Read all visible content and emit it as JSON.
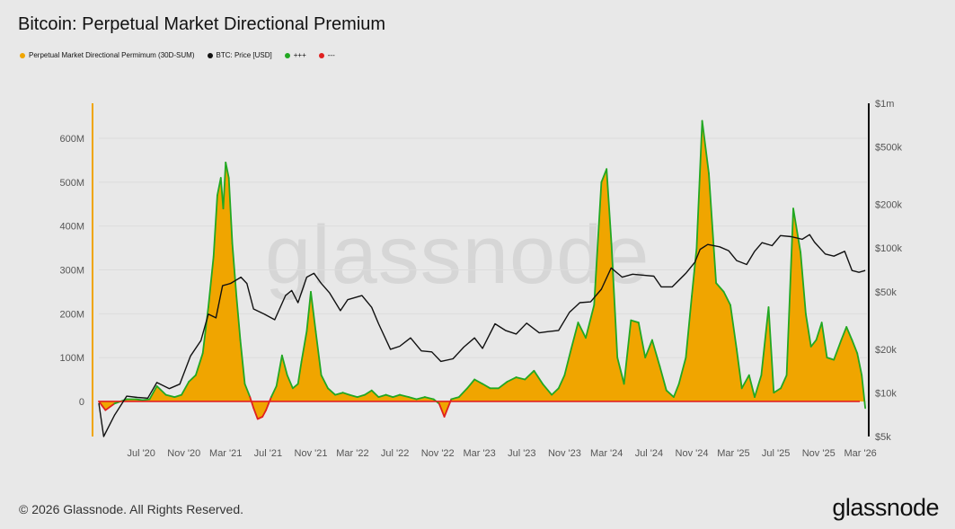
{
  "title": "Bitcoin: Perpetual Market Directional Premium",
  "legend": [
    {
      "label": "Perpetual Market Directional Permimum (30D-SUM)",
      "color": "#f0a500"
    },
    {
      "label": "BTC: Price [USD]",
      "color": "#111111"
    },
    {
      "label": "+++",
      "color": "#22a822"
    },
    {
      "label": "---",
      "color": "#e02020"
    }
  ],
  "watermark": "glassnode",
  "footer": "© 2026 Glassnode. All Rights Reserved.",
  "logo": "glassnode",
  "chart_data": {
    "type": "area",
    "x_ticks": [
      "Jul '20",
      "Nov '20",
      "Mar '21",
      "Jul '21",
      "Nov '21",
      "Mar '22",
      "Jul '22",
      "Nov '22",
      "Mar '23",
      "Jul '23",
      "Nov '23",
      "Mar '24",
      "Jul '24",
      "Nov '24",
      "Mar '25",
      "Jul '25",
      "Nov '25",
      "Mar '26"
    ],
    "y_left": {
      "label": "",
      "ticks": [
        "0",
        "100M",
        "200M",
        "300M",
        "400M",
        "500M",
        "600M"
      ],
      "range": [
        -80,
        680
      ],
      "unit": "M USD"
    },
    "y_right": {
      "label": "",
      "scale": "log",
      "ticks": [
        "$5k",
        "$10k",
        "$20k",
        "$50k",
        "$100k",
        "$200k",
        "$500k",
        "$1m"
      ],
      "range": [
        5000,
        1000000
      ]
    },
    "grid": true,
    "legend_position": "top-left",
    "series": [
      {
        "name": "Perpetual Market Directional Permimum (30D-SUM)",
        "axis": "left",
        "x": [
          "2020-03-01",
          "2020-03-20",
          "2020-04-15",
          "2020-05-20",
          "2020-06-15",
          "2020-07-05",
          "2020-07-25",
          "2020-08-15",
          "2020-09-10",
          "2020-10-05",
          "2020-10-25",
          "2020-11-15",
          "2020-12-05",
          "2020-12-25",
          "2021-01-10",
          "2021-01-25",
          "2021-02-05",
          "2021-02-15",
          "2021-02-22",
          "2021-03-01",
          "2021-03-10",
          "2021-03-20",
          "2021-04-01",
          "2021-04-12",
          "2021-04-25",
          "2021-05-10",
          "2021-05-20",
          "2021-06-01",
          "2021-06-15",
          "2021-06-25",
          "2021-07-10",
          "2021-07-25",
          "2021-08-10",
          "2021-08-25",
          "2021-09-10",
          "2021-09-25",
          "2021-10-05",
          "2021-10-20",
          "2021-11-01",
          "2021-11-15",
          "2021-12-01",
          "2021-12-20",
          "2022-01-10",
          "2022-02-01",
          "2022-02-20",
          "2022-03-15",
          "2022-04-05",
          "2022-04-25",
          "2022-05-15",
          "2022-06-05",
          "2022-06-25",
          "2022-07-15",
          "2022-08-10",
          "2022-09-01",
          "2022-09-25",
          "2022-10-20",
          "2022-11-05",
          "2022-11-20",
          "2022-12-10",
          "2023-01-01",
          "2023-01-25",
          "2023-02-15",
          "2023-03-10",
          "2023-04-01",
          "2023-04-25",
          "2023-05-20",
          "2023-06-15",
          "2023-07-10",
          "2023-08-05",
          "2023-08-30",
          "2023-09-25",
          "2023-10-15",
          "2023-11-01",
          "2023-11-20",
          "2023-12-10",
          "2024-01-01",
          "2024-01-25",
          "2024-02-15",
          "2024-03-01",
          "2024-03-15",
          "2024-04-01",
          "2024-04-20",
          "2024-05-10",
          "2024-06-01",
          "2024-06-20",
          "2024-07-10",
          "2024-08-01",
          "2024-08-20",
          "2024-09-10",
          "2024-09-25",
          "2024-10-15",
          "2024-11-01",
          "2024-11-15",
          "2024-12-01",
          "2024-12-20",
          "2025-01-10",
          "2025-02-01",
          "2025-02-20",
          "2025-03-10",
          "2025-03-25",
          "2025-04-15",
          "2025-05-01",
          "2025-05-20",
          "2025-06-10",
          "2025-06-25",
          "2025-07-15",
          "2025-08-01",
          "2025-08-20",
          "2025-09-10",
          "2025-09-25",
          "2025-10-10",
          "2025-10-25",
          "2025-11-10",
          "2025-11-25",
          "2025-12-15",
          "2026-01-05",
          "2026-01-20",
          "2026-02-05",
          "2026-02-20",
          "2026-03-05",
          "2026-03-15"
        ],
        "y": [
          0,
          -20,
          -5,
          5,
          5,
          3,
          5,
          35,
          15,
          10,
          15,
          45,
          60,
          110,
          215,
          330,
          470,
          510,
          440,
          545,
          510,
          360,
          240,
          140,
          40,
          10,
          -15,
          -40,
          -35,
          -20,
          10,
          35,
          105,
          60,
          30,
          40,
          90,
          160,
          250,
          160,
          60,
          30,
          15,
          20,
          15,
          10,
          15,
          25,
          10,
          15,
          10,
          15,
          10,
          5,
          10,
          5,
          -5,
          -35,
          5,
          10,
          30,
          50,
          40,
          30,
          30,
          45,
          55,
          50,
          70,
          40,
          15,
          30,
          60,
          120,
          180,
          145,
          220,
          500,
          530,
          360,
          100,
          40,
          185,
          180,
          100,
          140,
          80,
          25,
          10,
          40,
          100,
          240,
          350,
          640,
          520,
          270,
          250,
          220,
          120,
          30,
          60,
          10,
          60,
          215,
          20,
          30,
          60,
          440,
          340,
          200,
          125,
          140,
          180,
          100,
          95,
          140,
          170,
          140,
          110,
          60,
          -15
        ]
      },
      {
        "name": "BTC: Price [USD]",
        "axis": "right",
        "x": [
          "2020-03-01",
          "2020-03-15",
          "2020-04-15",
          "2020-05-20",
          "2020-06-20",
          "2020-07-20",
          "2020-08-15",
          "2020-09-20",
          "2020-10-20",
          "2020-11-20",
          "2020-12-20",
          "2021-01-10",
          "2021-02-01",
          "2021-02-20",
          "2021-03-15",
          "2021-04-14",
          "2021-05-01",
          "2021-05-20",
          "2021-06-20",
          "2021-07-20",
          "2021-08-20",
          "2021-09-07",
          "2021-09-25",
          "2021-10-20",
          "2021-11-10",
          "2021-12-01",
          "2021-12-25",
          "2022-01-25",
          "2022-02-15",
          "2022-03-28",
          "2022-04-25",
          "2022-05-15",
          "2022-06-18",
          "2022-07-15",
          "2022-08-15",
          "2022-09-15",
          "2022-10-15",
          "2022-11-10",
          "2022-12-15",
          "2023-01-15",
          "2023-02-15",
          "2023-03-10",
          "2023-04-15",
          "2023-05-15",
          "2023-06-15",
          "2023-07-15",
          "2023-08-20",
          "2023-09-15",
          "2023-10-15",
          "2023-11-15",
          "2023-12-15",
          "2024-01-15",
          "2024-02-15",
          "2024-03-14",
          "2024-04-15",
          "2024-05-15",
          "2024-06-15",
          "2024-07-15",
          "2024-08-05",
          "2024-09-06",
          "2024-10-15",
          "2024-11-10",
          "2024-11-25",
          "2024-12-17",
          "2025-01-20",
          "2025-02-15",
          "2025-03-10",
          "2025-04-08",
          "2025-05-01",
          "2025-05-22",
          "2025-06-20",
          "2025-07-14",
          "2025-08-14",
          "2025-09-15",
          "2025-10-06",
          "2025-10-20",
          "2025-11-20",
          "2025-12-15",
          "2026-01-15",
          "2026-02-05",
          "2026-02-25",
          "2026-03-15"
        ],
        "y": [
          8500,
          5000,
          7000,
          9500,
          9300,
          9200,
          11800,
          10700,
          11500,
          18000,
          23000,
          35000,
          33000,
          55000,
          57000,
          63000,
          57000,
          38000,
          35000,
          32000,
          47000,
          51000,
          42000,
          63000,
          67000,
          57000,
          49000,
          37000,
          44000,
          47000,
          39000,
          30000,
          20000,
          21000,
          24000,
          19500,
          19200,
          16500,
          17200,
          20700,
          24000,
          20300,
          30000,
          27000,
          25500,
          30300,
          26000,
          26500,
          27000,
          36000,
          42000,
          42500,
          52000,
          73000,
          63000,
          66000,
          65000,
          64000,
          54000,
          54000,
          67000,
          80000,
          98000,
          106000,
          102000,
          96000,
          82000,
          77000,
          95000,
          109000,
          104000,
          122000,
          120000,
          115000,
          124000,
          110000,
          91000,
          88000,
          95000,
          70000,
          68000,
          70000
        ]
      }
    ]
  }
}
